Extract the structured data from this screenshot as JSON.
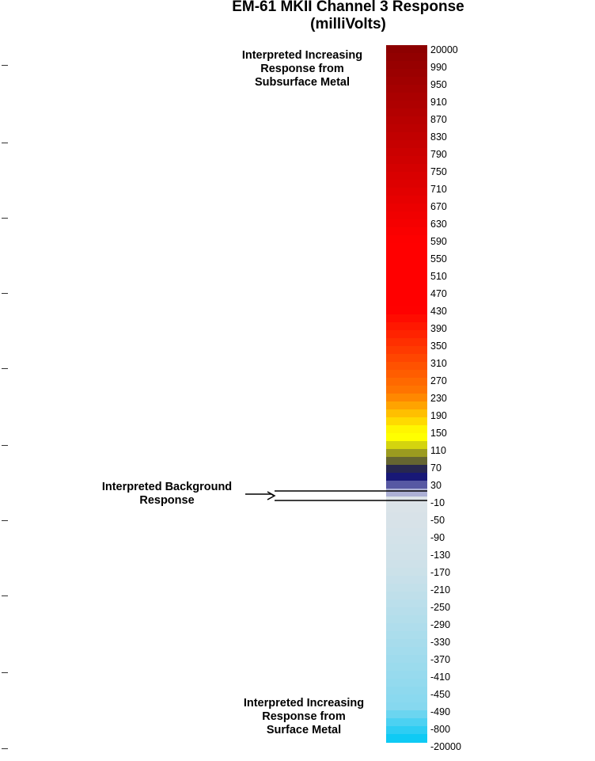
{
  "title": {
    "line1": "EM-61 MKII Channel 3 Response",
    "line2": "(milliVolts)"
  },
  "annotations": {
    "top": [
      "Interpreted Increasing",
      "Response from",
      "Subsurface Metal"
    ],
    "middle": [
      "Interpreted Background",
      "Response"
    ],
    "bottom": [
      "Interpreted Increasing",
      "Response from",
      "Surface Metal"
    ]
  },
  "color_scale": {
    "labels": [
      "20000",
      "990",
      "950",
      "910",
      "870",
      "830",
      "790",
      "750",
      "710",
      "670",
      "630",
      "590",
      "550",
      "510",
      "470",
      "430",
      "390",
      "350",
      "310",
      "270",
      "230",
      "190",
      "150",
      "110",
      "70",
      "30",
      "-10",
      "-50",
      "-90",
      "-130",
      "-170",
      "-210",
      "-250",
      "-290",
      "-330",
      "-370",
      "-410",
      "-450",
      "-490",
      "-800",
      "-20000"
    ],
    "background_band": [
      "30",
      "-10"
    ],
    "colors": {
      "top": "#8b0000",
      "red": "#ff0000",
      "orange": "#ff7a00",
      "yellow": "#ffff00",
      "dark_navy": "#000066",
      "light_gray": "#dde3e8",
      "light_blue": "#86d8ef",
      "cyan": "#00c8f5"
    }
  }
}
